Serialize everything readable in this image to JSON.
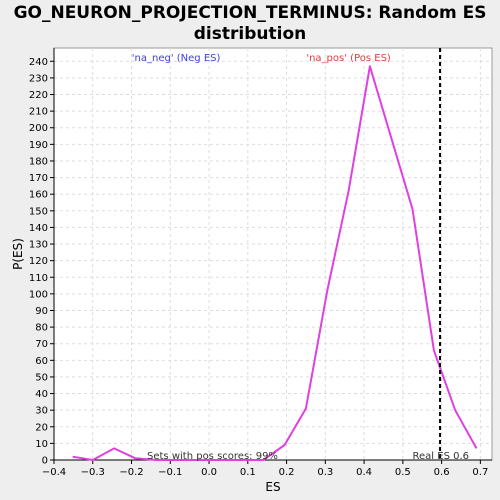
{
  "chart_data": {
    "type": "line",
    "title_line1": "GO_NEURON_PROJECTION_TERMINUS: Random ES",
    "title_line2": "distribution",
    "xlabel": "ES",
    "ylabel": "P(ES)",
    "xlim": [
      -0.4,
      0.73
    ],
    "ylim": [
      0,
      248
    ],
    "x_ticks": [
      -0.4,
      -0.3,
      -0.2,
      -0.1,
      0.0,
      0.1,
      0.2,
      0.3,
      0.4,
      0.5,
      0.6,
      0.7
    ],
    "x_tick_labels": [
      "−0.4",
      "−0.3",
      "−0.2",
      "−0.1",
      "0.0",
      "0.1",
      "0.2",
      "0.3",
      "0.4",
      "0.5",
      "0.6",
      "0.7"
    ],
    "y_ticks": [
      0,
      10,
      20,
      30,
      40,
      50,
      60,
      70,
      80,
      90,
      100,
      110,
      120,
      130,
      140,
      150,
      160,
      170,
      180,
      190,
      200,
      210,
      220,
      230,
      240
    ],
    "grid": true,
    "line_color": "#e040e0",
    "series": [
      {
        "x": [
          -0.352,
          -0.3,
          -0.245,
          -0.19,
          -0.135,
          -0.08,
          -0.03,
          0.03,
          0.085,
          0.14,
          0.195,
          0.25,
          0.305,
          0.36,
          0.415,
          0.47,
          0.525,
          0.58,
          0.635,
          0.69
        ],
        "y": [
          2,
          0,
          7,
          1,
          0,
          0,
          0,
          0,
          0,
          0,
          9,
          31,
          102,
          162,
          237,
          194,
          151,
          66,
          30,
          7
        ]
      }
    ],
    "real_es": 0.596,
    "real_es_label": "Real ES 0.6",
    "neg_label": "'na_neg' (Neg ES)",
    "pos_label": "'na_pos' (Pos ES)",
    "neg_color": "#4040dd",
    "pos_color": "#dd4040",
    "pos_scores_label": "Sets with pos scores: 99%"
  }
}
